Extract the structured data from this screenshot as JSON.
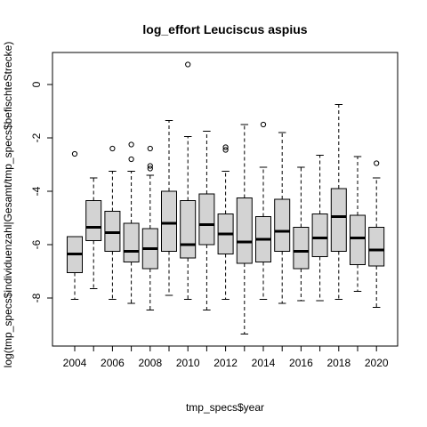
{
  "chart_data": {
    "type": "boxplot",
    "title": "log_effort Leuciscus aspius",
    "xlabel": "tmp_specs$year",
    "ylabel": "log(tmp_specs$individuenzahl|Gesamt/tmp_specs$befischteStrecke)",
    "ylim": [
      -9.8,
      1.2
    ],
    "y_ticks": [
      0,
      -2,
      -4,
      -6,
      -8
    ],
    "x_tick_labels": [
      "2004",
      "2006",
      "2008",
      "2010",
      "2012",
      "2014",
      "2016",
      "2018",
      "2020"
    ],
    "box_fill": "#d3d3d3",
    "categories": [
      "2004",
      "2005",
      "2006",
      "2007",
      "2008",
      "2009",
      "2010",
      "2011",
      "2012",
      "2013",
      "2014",
      "2015",
      "2016",
      "2017",
      "2018",
      "2019",
      "2020"
    ],
    "boxes": [
      {
        "year": "2004",
        "whisker_low": -8.05,
        "q1": -7.05,
        "median": -6.35,
        "q3": -5.7,
        "whisker_high": -5.7,
        "outliers": [
          -2.6
        ]
      },
      {
        "year": "2005",
        "whisker_low": -7.65,
        "q1": -5.85,
        "median": -5.35,
        "q3": -4.35,
        "whisker_high": -3.5,
        "outliers": []
      },
      {
        "year": "2006",
        "whisker_low": -8.05,
        "q1": -6.25,
        "median": -5.55,
        "q3": -4.75,
        "whisker_high": -3.25,
        "outliers": [
          -2.4
        ]
      },
      {
        "year": "2007",
        "whisker_low": -8.2,
        "q1": -6.65,
        "median": -6.25,
        "q3": -5.2,
        "whisker_high": -3.25,
        "outliers": [
          -2.25,
          -2.8
        ]
      },
      {
        "year": "2008",
        "whisker_low": -8.45,
        "q1": -6.9,
        "median": -6.15,
        "q3": -5.4,
        "whisker_high": -3.4,
        "outliers": [
          -2.4,
          -3.05,
          -3.15
        ]
      },
      {
        "year": "2009",
        "whisker_low": -7.9,
        "q1": -6.25,
        "median": -5.2,
        "q3": -4.0,
        "whisker_high": -1.35,
        "outliers": []
      },
      {
        "year": "2010",
        "whisker_low": -8.05,
        "q1": -6.5,
        "median": -6.0,
        "q3": -4.35,
        "whisker_high": -1.95,
        "outliers": [
          0.75
        ]
      },
      {
        "year": "2011",
        "whisker_low": -8.45,
        "q1": -6.0,
        "median": -5.25,
        "q3": -4.1,
        "whisker_high": -1.75,
        "outliers": []
      },
      {
        "year": "2012",
        "whisker_low": -8.05,
        "q1": -6.35,
        "median": -5.6,
        "q3": -4.85,
        "whisker_high": -3.25,
        "outliers": [
          -2.35,
          -2.45
        ]
      },
      {
        "year": "2013",
        "whisker_low": -9.35,
        "q1": -6.7,
        "median": -5.9,
        "q3": -4.25,
        "whisker_high": -1.5,
        "outliers": []
      },
      {
        "year": "2014",
        "whisker_low": -8.05,
        "q1": -6.65,
        "median": -5.8,
        "q3": -4.95,
        "whisker_high": -3.1,
        "outliers": [
          -1.5
        ]
      },
      {
        "year": "2015",
        "whisker_low": -8.2,
        "q1": -6.25,
        "median": -5.5,
        "q3": -4.3,
        "whisker_high": -1.8,
        "outliers": []
      },
      {
        "year": "2016",
        "whisker_low": -8.1,
        "q1": -6.9,
        "median": -6.25,
        "q3": -5.35,
        "whisker_high": -3.1,
        "outliers": []
      },
      {
        "year": "2017",
        "whisker_low": -8.1,
        "q1": -6.45,
        "median": -5.75,
        "q3": -4.85,
        "whisker_high": -2.65,
        "outliers": []
      },
      {
        "year": "2018",
        "whisker_low": -8.05,
        "q1": -6.25,
        "median": -4.95,
        "q3": -3.9,
        "whisker_high": -0.75,
        "outliers": []
      },
      {
        "year": "2019",
        "whisker_low": -7.75,
        "q1": -6.75,
        "median": -5.75,
        "q3": -4.9,
        "whisker_high": -2.7,
        "outliers": []
      },
      {
        "year": "2020",
        "whisker_low": -8.35,
        "q1": -6.8,
        "median": -6.2,
        "q3": -5.35,
        "whisker_high": -3.5,
        "outliers": [
          -2.95
        ]
      }
    ]
  }
}
